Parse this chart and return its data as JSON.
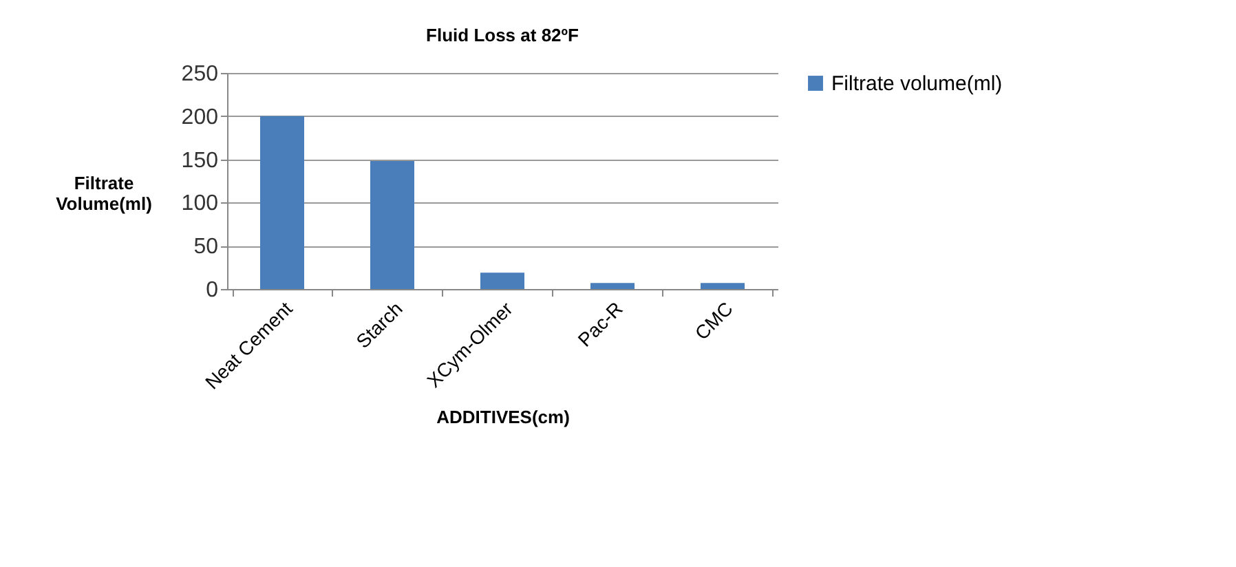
{
  "chart_data": {
    "type": "bar",
    "title": "Fluid Loss  at 82ºF",
    "xlabel": "ADDITIVES(cm)",
    "ylabel": "Filtrate Volume(ml)",
    "categories": [
      "Neat Cement",
      "Starch",
      "XCym-Olmer",
      "Pac-R",
      "CMC"
    ],
    "series": [
      {
        "name": "Filtrate volume(ml)",
        "color": "#4a7ebb",
        "values": [
          200,
          148,
          19,
          7,
          7
        ]
      }
    ],
    "ylim": [
      0,
      250
    ],
    "yticks": [
      0,
      50,
      100,
      150,
      200,
      250
    ],
    "grid": "y",
    "legend": "right"
  }
}
